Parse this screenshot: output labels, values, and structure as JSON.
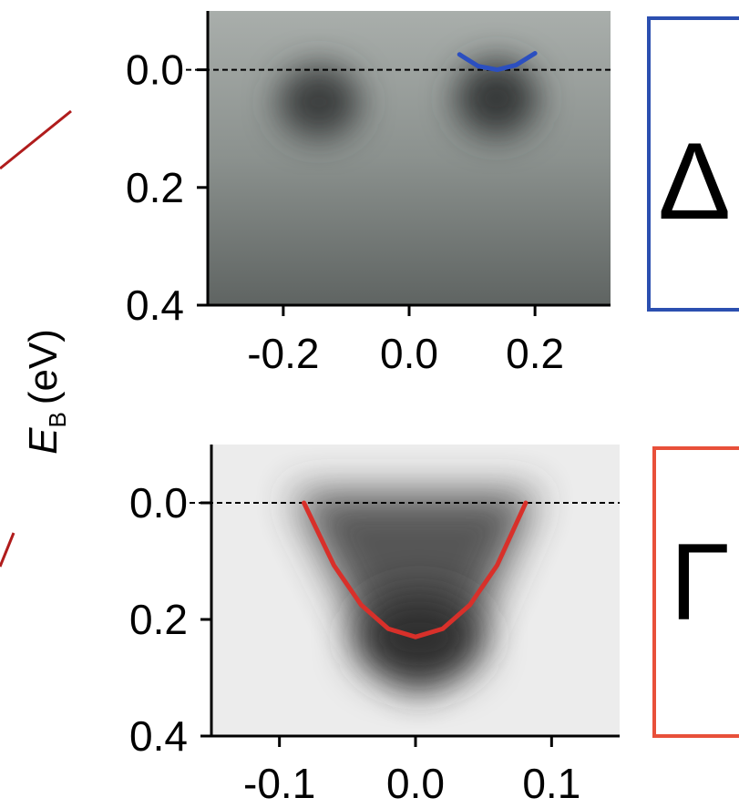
{
  "shared_ylabel": {
    "symbol": "E",
    "subscript": "B",
    "unit": "(eV)"
  },
  "chart_data": [
    {
      "type": "line",
      "panel_label": "Δ",
      "panel_color": "#2b4fb0",
      "xlim": [
        -0.32,
        0.32
      ],
      "xticks": [
        -0.2,
        {
          "value": 0,
          "label": "0.0"
        },
        0.2
      ],
      "ylim": [
        0.4,
        -0.1
      ],
      "yticks": [
        {
          "value": 0,
          "label": "0.0"
        },
        0.2,
        0.4
      ],
      "reference_line": 0,
      "series": [
        {
          "color": "#2b4fc0",
          "x": [
            0.08,
            0.11,
            0.14,
            0.17,
            0.2
          ],
          "values": [
            -0.026,
            -0.006,
            0.0,
            -0.008,
            -0.028
          ]
        }
      ]
    },
    {
      "type": "line",
      "panel_label": "Γ",
      "panel_color": "#e8503a",
      "xlim": [
        -0.15,
        0.15
      ],
      "xticks": [
        -0.1,
        {
          "value": 0,
          "label": "0.0"
        },
        0.1
      ],
      "ylim": [
        0.4,
        -0.1
      ],
      "yticks": [
        {
          "value": 0,
          "label": "0.0"
        },
        0.2,
        0.4
      ],
      "reference_line": 0,
      "series": [
        {
          "color": "#d8302a",
          "x": [
            -0.082,
            -0.06,
            -0.04,
            -0.02,
            0,
            0.02,
            0.04,
            0.06,
            0.081
          ],
          "values": [
            0,
            0.107,
            0.175,
            0.216,
            0.23,
            0.216,
            0.175,
            0.107,
            0
          ]
        }
      ]
    }
  ]
}
